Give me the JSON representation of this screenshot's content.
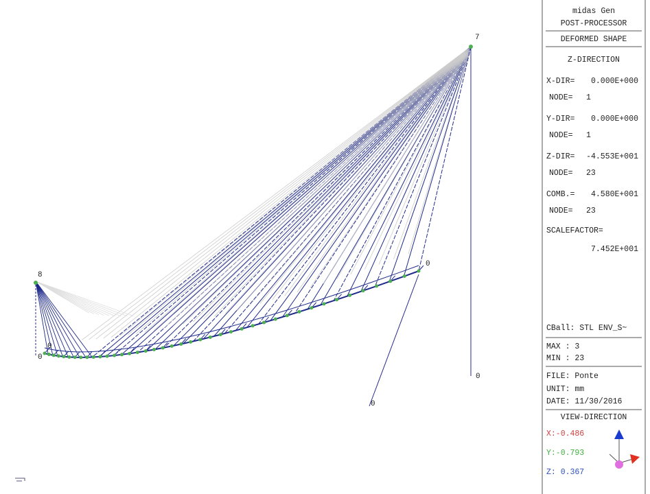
{
  "header": {
    "app": "midas Gen",
    "module": "POST-PROCESSOR",
    "mode": "DEFORMED SHAPE",
    "direction": "Z-DIRECTION"
  },
  "results": [
    {
      "label": "X-DIR=",
      "value": "0.000E+000",
      "node_label": "NODE=",
      "node": "1"
    },
    {
      "label": "Y-DIR=",
      "value": "0.000E+000",
      "node_label": "NODE=",
      "node": "1"
    },
    {
      "label": "Z-DIR=",
      "value": "-4.553E+001",
      "node_label": "NODE=",
      "node": "23"
    },
    {
      "label": "COMB.=",
      "value": "4.580E+001",
      "node_label": "NODE=",
      "node": "23"
    }
  ],
  "scale": {
    "label": "SCALEFACTOR=",
    "value": "7.452E+001"
  },
  "load_case": "CBall: STL ENV_S~",
  "extremes": [
    "MAX : 3",
    "MIN : 23"
  ],
  "file": [
    "FILE: Ponte",
    "UNIT: mm",
    "DATE: 11/30/2016"
  ],
  "view": {
    "title": "VIEW-DIRECTION",
    "x": "X:-0.486",
    "y": "Y:-0.793",
    "z": "Z: 0.367"
  },
  "node_labels": [
    "7",
    "8",
    "0",
    "0",
    "0",
    "0",
    "0"
  ]
}
